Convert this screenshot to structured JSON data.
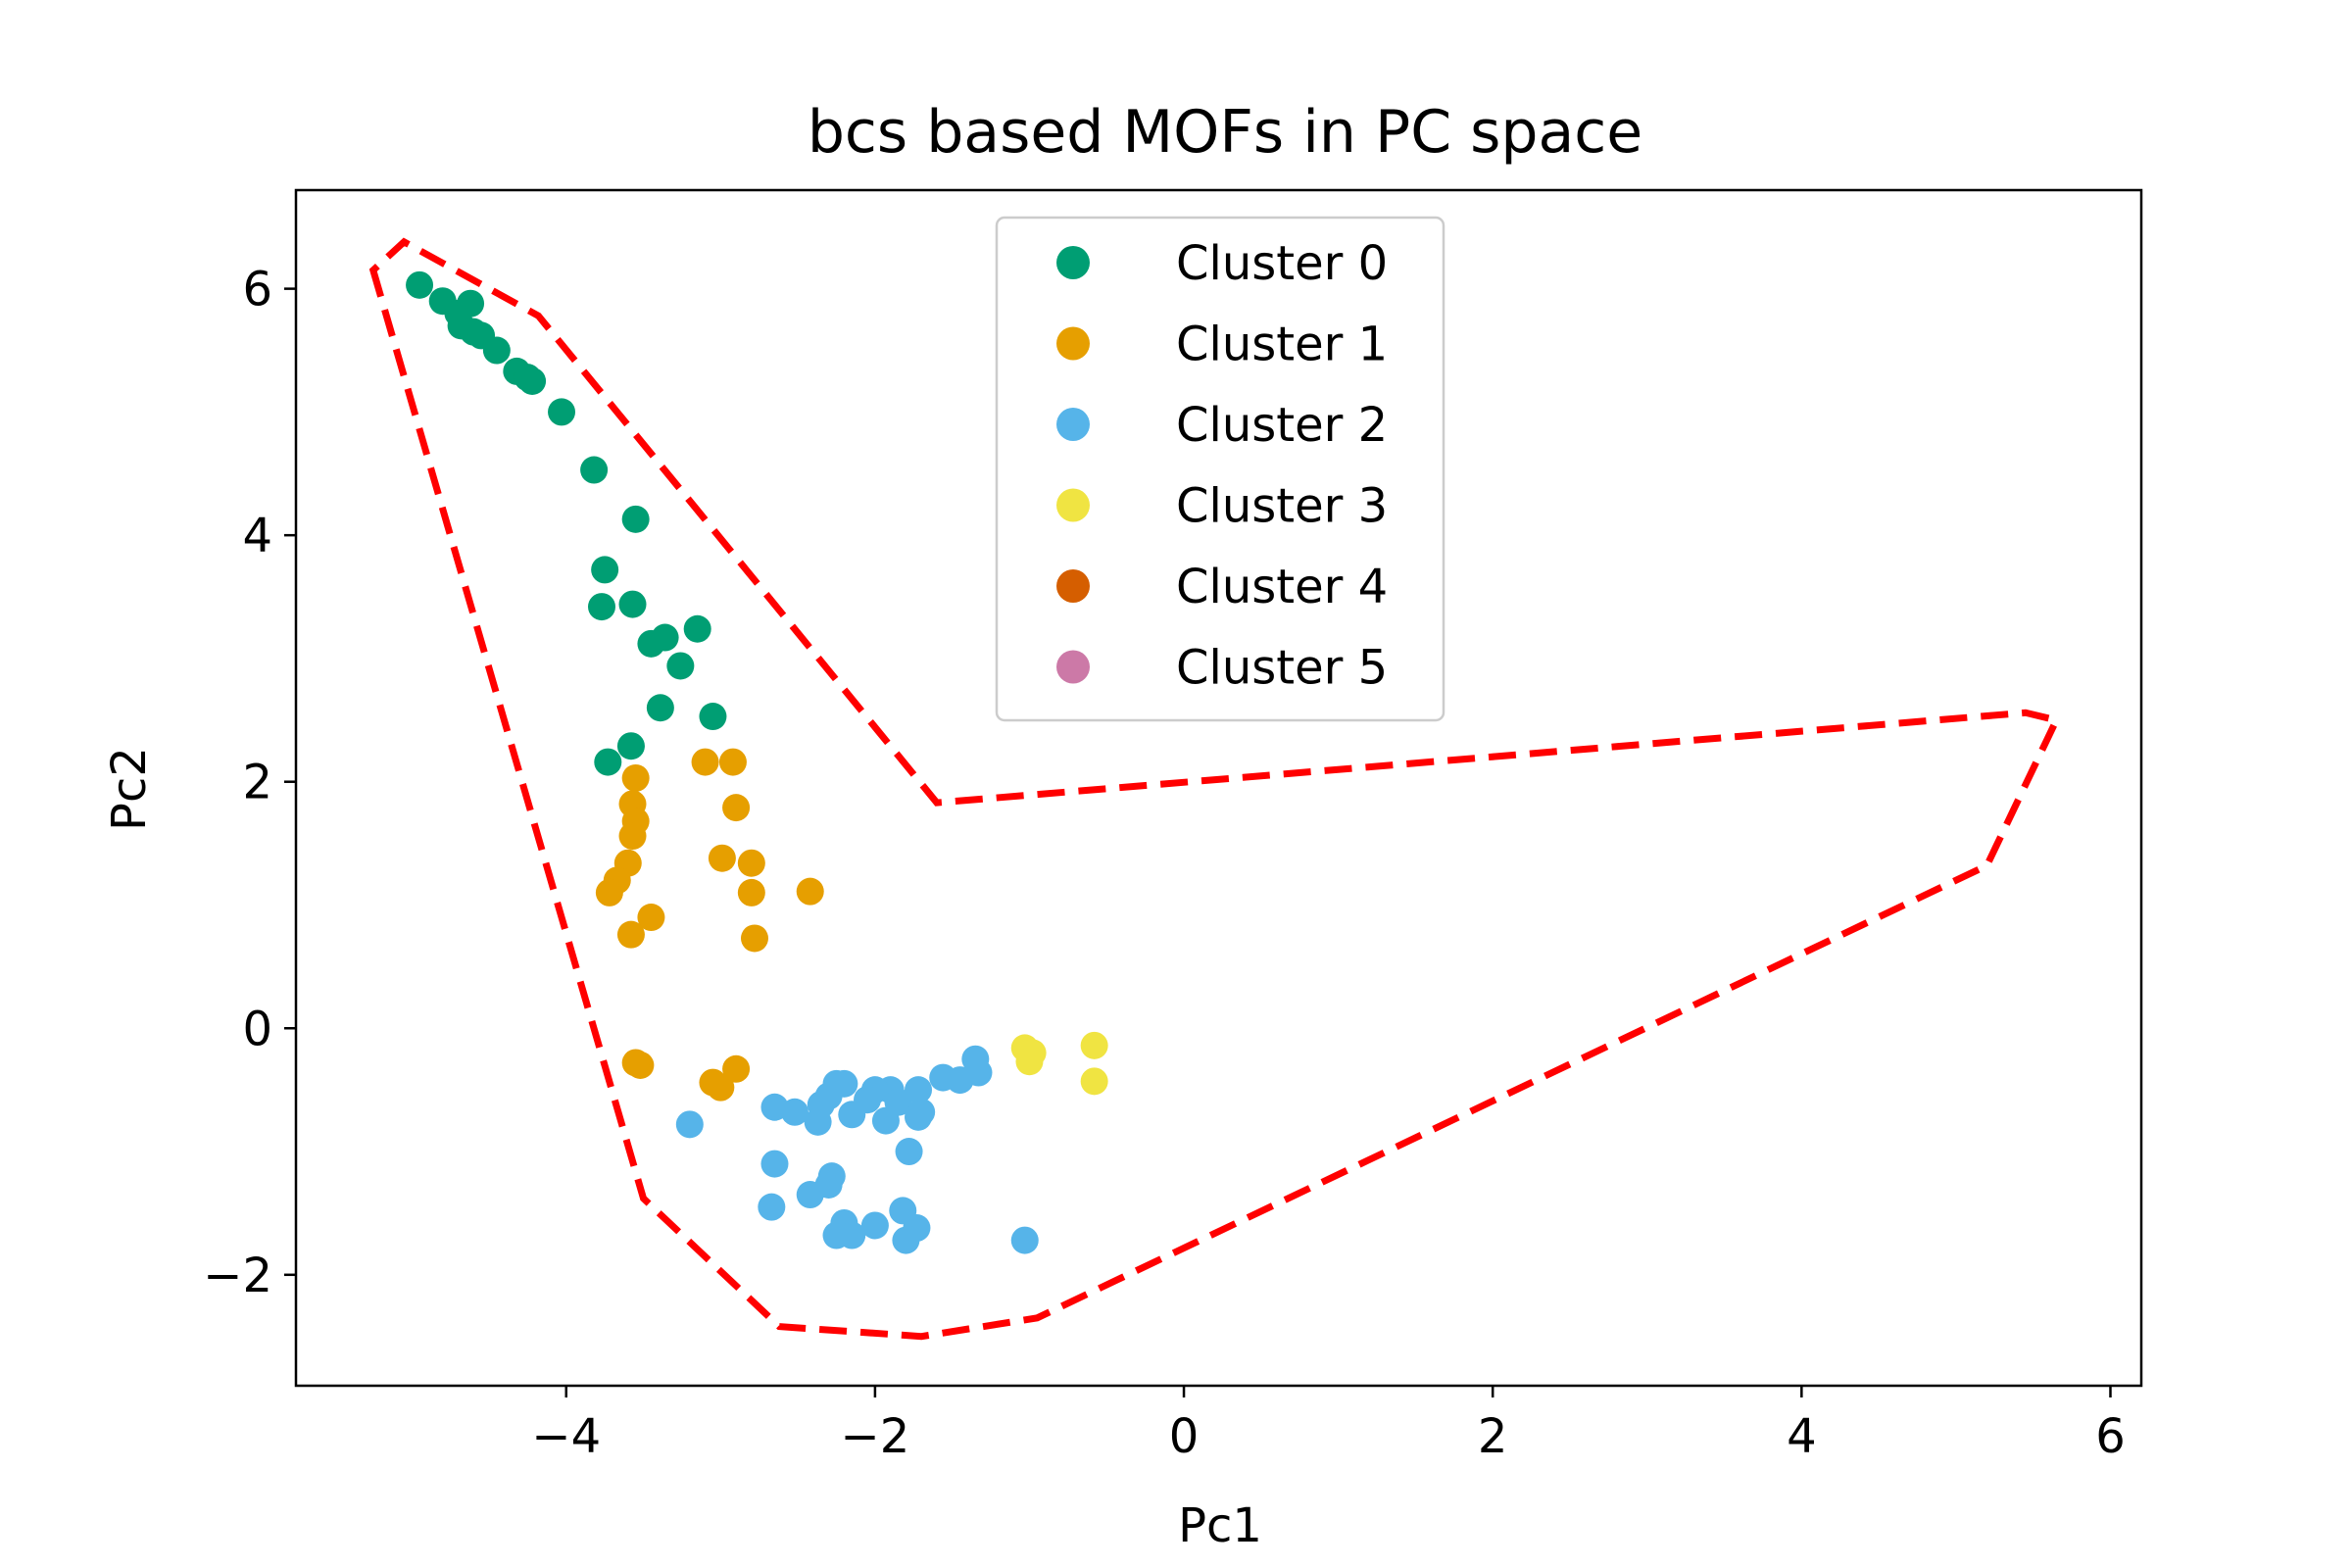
{
  "chart_data": {
    "type": "scatter",
    "title": "bcs based MOFs in PC space",
    "xlabel": "Pc1",
    "ylabel": "Pc2",
    "xlim": [
      -5.75,
      6.2
    ],
    "ylim": [
      -2.9,
      6.8
    ],
    "xticks": [
      -4,
      -2,
      0,
      2,
      4,
      6
    ],
    "yticks": [
      -2,
      0,
      2,
      4,
      6
    ],
    "xtick_labels": [
      "−4",
      "−2",
      "0",
      "2",
      "4",
      "6"
    ],
    "ytick_labels": [
      "−2",
      "0",
      "2",
      "4",
      "6"
    ],
    "grid": false,
    "legend_position": "top-center",
    "series": [
      {
        "name": "Cluster 0",
        "color": "#009E73",
        "points": [
          [
            -4.95,
            6.03
          ],
          [
            -4.8,
            5.9
          ],
          [
            -4.7,
            5.8
          ],
          [
            -4.62,
            5.88
          ],
          [
            -4.68,
            5.7
          ],
          [
            -4.6,
            5.65
          ],
          [
            -4.55,
            5.62
          ],
          [
            -4.45,
            5.5
          ],
          [
            -4.32,
            5.33
          ],
          [
            -4.25,
            5.28
          ],
          [
            -4.22,
            5.25
          ],
          [
            -4.03,
            5.0
          ],
          [
            -3.82,
            4.53
          ],
          [
            -3.55,
            4.13
          ],
          [
            -3.75,
            3.72
          ],
          [
            -3.57,
            3.44
          ],
          [
            -3.77,
            3.42
          ],
          [
            -3.45,
            3.12
          ],
          [
            -3.36,
            3.17
          ],
          [
            -3.15,
            3.24
          ],
          [
            -3.26,
            2.94
          ],
          [
            -3.39,
            2.6
          ],
          [
            -3.05,
            2.53
          ],
          [
            -3.58,
            2.29
          ],
          [
            -3.73,
            2.16
          ]
        ]
      },
      {
        "name": "Cluster 1",
        "color": "#E69F00",
        "points": [
          [
            -3.55,
            2.03
          ],
          [
            -3.1,
            2.16
          ],
          [
            -2.92,
            2.16
          ],
          [
            -3.57,
            1.82
          ],
          [
            -3.55,
            1.68
          ],
          [
            -2.9,
            1.79
          ],
          [
            -3.57,
            1.56
          ],
          [
            -2.99,
            1.38
          ],
          [
            -3.6,
            1.34
          ],
          [
            -2.8,
            1.34
          ],
          [
            -3.67,
            1.2
          ],
          [
            -3.72,
            1.1
          ],
          [
            -2.8,
            1.1
          ],
          [
            -2.42,
            1.11
          ],
          [
            -3.45,
            0.9
          ],
          [
            -3.58,
            0.76
          ],
          [
            -2.78,
            0.73
          ],
          [
            -3.52,
            -0.3
          ],
          [
            -3.55,
            -0.28
          ],
          [
            -2.9,
            -0.33
          ],
          [
            -3.05,
            -0.44
          ],
          [
            -3.0,
            -0.48
          ]
        ]
      },
      {
        "name": "Cluster 2",
        "color": "#56B4E9",
        "points": [
          [
            -1.35,
            -0.25
          ],
          [
            -1.33,
            -0.36
          ],
          [
            -1.45,
            -0.42
          ],
          [
            -1.56,
            -0.4
          ],
          [
            -1.72,
            -0.5
          ],
          [
            -1.9,
            -0.5
          ],
          [
            -1.85,
            -0.6
          ],
          [
            -1.7,
            -0.68
          ],
          [
            -1.72,
            -0.72
          ],
          [
            -2.0,
            -0.5
          ],
          [
            -2.2,
            -0.45
          ],
          [
            -2.25,
            -0.45
          ],
          [
            -2.3,
            -0.55
          ],
          [
            -2.35,
            -0.62
          ],
          [
            -2.15,
            -0.7
          ],
          [
            -2.05,
            -0.58
          ],
          [
            -1.93,
            -0.75
          ],
          [
            -2.52,
            -0.68
          ],
          [
            -2.65,
            -0.64
          ],
          [
            -2.37,
            -0.76
          ],
          [
            -3.2,
            -0.78
          ],
          [
            -1.78,
            -1.0
          ],
          [
            -2.65,
            -1.1
          ],
          [
            -2.28,
            -1.2
          ],
          [
            -2.3,
            -1.27
          ],
          [
            -2.42,
            -1.35
          ],
          [
            -2.67,
            -1.45
          ],
          [
            -1.82,
            -1.48
          ],
          [
            -1.73,
            -1.62
          ],
          [
            -2.0,
            -1.6
          ],
          [
            -2.2,
            -1.58
          ],
          [
            -2.15,
            -1.68
          ],
          [
            -2.25,
            -1.68
          ],
          [
            -1.8,
            -1.72
          ],
          [
            -1.03,
            -1.72
          ]
        ]
      },
      {
        "name": "Cluster 3",
        "color": "#F0E442",
        "points": [
          [
            -1.03,
            -0.16
          ],
          [
            -0.98,
            -0.2
          ],
          [
            -1.0,
            -0.27
          ],
          [
            -0.58,
            -0.14
          ],
          [
            -0.58,
            -0.43
          ]
        ]
      },
      {
        "name": "Cluster 4",
        "color": "#D55E00",
        "points": []
      },
      {
        "name": "Cluster 5",
        "color": "#CC79A7",
        "points": []
      }
    ],
    "hull": {
      "color": "#FF0000",
      "style": "dashed",
      "points": [
        [
          -5.25,
          6.15
        ],
        [
          -3.5,
          -1.38
        ],
        [
          -2.62,
          -2.42
        ],
        [
          -1.7,
          -2.5
        ],
        [
          -0.95,
          -2.35
        ],
        [
          5.2,
          1.32
        ],
        [
          5.65,
          2.5
        ],
        [
          5.45,
          2.56
        ],
        [
          -1.6,
          1.83
        ],
        [
          -4.18,
          5.78
        ],
        [
          -5.05,
          6.38
        ]
      ]
    }
  }
}
